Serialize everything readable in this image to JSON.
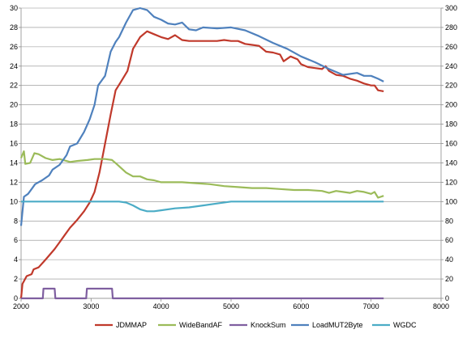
{
  "chart_data": {
    "type": "line",
    "title": "",
    "xlabel": "",
    "ylabel": "",
    "xlim": [
      2000,
      8000
    ],
    "x_ticks": [
      "2000",
      "3000",
      "4000",
      "5000",
      "6000",
      "7000",
      "8000"
    ],
    "y_left_lim": [
      0,
      30
    ],
    "y_left_ticks": [
      "0",
      "2",
      "4",
      "6",
      "8",
      "10",
      "12",
      "14",
      "16",
      "18",
      "20",
      "22",
      "24",
      "26",
      "28",
      "30"
    ],
    "y_right_lim": [
      0,
      300
    ],
    "y_right_ticks": [
      "0",
      "20",
      "40",
      "60",
      "80",
      "100",
      "120",
      "140",
      "160",
      "180",
      "200",
      "220",
      "240",
      "260",
      "280",
      "300"
    ],
    "grid": "horizontal",
    "legend_position": "bottom",
    "series": [
      {
        "name": "JDMMAP",
        "color": "#c0392b",
        "axis": "left",
        "points": [
          [
            2000,
            0
          ],
          [
            2020,
            1.5
          ],
          [
            2080,
            2.3
          ],
          [
            2150,
            2.5
          ],
          [
            2180,
            3.0
          ],
          [
            2250,
            3.2
          ],
          [
            2350,
            4.0
          ],
          [
            2420,
            4.6
          ],
          [
            2480,
            5.1
          ],
          [
            2550,
            5.8
          ],
          [
            2620,
            6.5
          ],
          [
            2700,
            7.3
          ],
          [
            2800,
            8.1
          ],
          [
            2900,
            9.0
          ],
          [
            2980,
            9.9
          ],
          [
            3050,
            11.0
          ],
          [
            3120,
            13.0
          ],
          [
            3200,
            16.0
          ],
          [
            3280,
            19.0
          ],
          [
            3350,
            21.5
          ],
          [
            3420,
            22.3
          ],
          [
            3520,
            23.5
          ],
          [
            3600,
            25.8
          ],
          [
            3700,
            27.0
          ],
          [
            3800,
            27.6
          ],
          [
            3900,
            27.3
          ],
          [
            4000,
            27.0
          ],
          [
            4100,
            26.8
          ],
          [
            4200,
            27.2
          ],
          [
            4300,
            26.7
          ],
          [
            4400,
            26.6
          ],
          [
            4600,
            26.6
          ],
          [
            4800,
            26.6
          ],
          [
            4900,
            26.7
          ],
          [
            5000,
            26.6
          ],
          [
            5100,
            26.6
          ],
          [
            5200,
            26.3
          ],
          [
            5300,
            26.2
          ],
          [
            5400,
            26.1
          ],
          [
            5500,
            25.5
          ],
          [
            5600,
            25.4
          ],
          [
            5700,
            25.2
          ],
          [
            5750,
            24.5
          ],
          [
            5850,
            25.0
          ],
          [
            5950,
            24.7
          ],
          [
            6000,
            24.2
          ],
          [
            6100,
            23.9
          ],
          [
            6200,
            23.8
          ],
          [
            6300,
            23.7
          ],
          [
            6350,
            24.0
          ],
          [
            6400,
            23.5
          ],
          [
            6500,
            23.1
          ],
          [
            6600,
            23.0
          ],
          [
            6700,
            22.7
          ],
          [
            6800,
            22.5
          ],
          [
            6900,
            22.2
          ],
          [
            7000,
            22.0
          ],
          [
            7050,
            22.0
          ],
          [
            7100,
            21.5
          ],
          [
            7180,
            21.4
          ]
        ]
      },
      {
        "name": "WideBandAF",
        "color": "#9bbb59",
        "axis": "left",
        "points": [
          [
            2000,
            14.5
          ],
          [
            2040,
            15.2
          ],
          [
            2060,
            13.9
          ],
          [
            2130,
            14.0
          ],
          [
            2190,
            15.0
          ],
          [
            2250,
            14.9
          ],
          [
            2350,
            14.5
          ],
          [
            2450,
            14.3
          ],
          [
            2550,
            14.4
          ],
          [
            2700,
            14.1
          ],
          [
            2800,
            14.2
          ],
          [
            2950,
            14.3
          ],
          [
            3050,
            14.4
          ],
          [
            3200,
            14.4
          ],
          [
            3300,
            14.3
          ],
          [
            3380,
            13.8
          ],
          [
            3500,
            13.0
          ],
          [
            3600,
            12.6
          ],
          [
            3700,
            12.6
          ],
          [
            3800,
            12.3
          ],
          [
            3900,
            12.2
          ],
          [
            4000,
            12.0
          ],
          [
            4100,
            12.0
          ],
          [
            4300,
            12.0
          ],
          [
            4500,
            11.9
          ],
          [
            4700,
            11.8
          ],
          [
            4900,
            11.6
          ],
          [
            5100,
            11.5
          ],
          [
            5300,
            11.4
          ],
          [
            5500,
            11.4
          ],
          [
            5700,
            11.3
          ],
          [
            5900,
            11.2
          ],
          [
            6100,
            11.2
          ],
          [
            6300,
            11.1
          ],
          [
            6400,
            10.9
          ],
          [
            6500,
            11.1
          ],
          [
            6600,
            11.0
          ],
          [
            6700,
            10.9
          ],
          [
            6800,
            11.1
          ],
          [
            6900,
            11.0
          ],
          [
            7000,
            10.8
          ],
          [
            7050,
            11.0
          ],
          [
            7100,
            10.4
          ],
          [
            7180,
            10.6
          ]
        ]
      },
      {
        "name": "KnockSum",
        "color": "#7f5fa0",
        "axis": "left",
        "points": [
          [
            2000,
            0
          ],
          [
            2310,
            0
          ],
          [
            2320,
            1
          ],
          [
            2480,
            1
          ],
          [
            2490,
            0
          ],
          [
            2930,
            0
          ],
          [
            2940,
            1
          ],
          [
            3300,
            1
          ],
          [
            3310,
            0
          ],
          [
            7180,
            0
          ]
        ]
      },
      {
        "name": "LoadMUT2Byte",
        "color": "#4f81bd",
        "axis": "right",
        "points": [
          [
            2000,
            75
          ],
          [
            2040,
            105
          ],
          [
            2100,
            108
          ],
          [
            2150,
            113
          ],
          [
            2200,
            118
          ],
          [
            2300,
            122
          ],
          [
            2400,
            127
          ],
          [
            2450,
            133
          ],
          [
            2550,
            138
          ],
          [
            2650,
            148
          ],
          [
            2700,
            157
          ],
          [
            2800,
            160
          ],
          [
            2900,
            172
          ],
          [
            2980,
            185
          ],
          [
            3050,
            200
          ],
          [
            3100,
            220
          ],
          [
            3200,
            230
          ],
          [
            3280,
            255
          ],
          [
            3350,
            265
          ],
          [
            3400,
            270
          ],
          [
            3500,
            285
          ],
          [
            3600,
            298
          ],
          [
            3700,
            300
          ],
          [
            3800,
            298
          ],
          [
            3900,
            291
          ],
          [
            4000,
            288
          ],
          [
            4100,
            284
          ],
          [
            4200,
            283
          ],
          [
            4300,
            285
          ],
          [
            4400,
            278
          ],
          [
            4500,
            277
          ],
          [
            4600,
            280
          ],
          [
            4800,
            279
          ],
          [
            5000,
            280
          ],
          [
            5200,
            277
          ],
          [
            5400,
            271
          ],
          [
            5600,
            264
          ],
          [
            5800,
            258
          ],
          [
            6000,
            250
          ],
          [
            6200,
            244
          ],
          [
            6400,
            237
          ],
          [
            6600,
            231
          ],
          [
            6800,
            233
          ],
          [
            6900,
            230
          ],
          [
            7000,
            230
          ],
          [
            7100,
            227
          ],
          [
            7180,
            224
          ]
        ]
      },
      {
        "name": "WGDC",
        "color": "#4bacc6",
        "axis": "right",
        "points": [
          [
            2000,
            100
          ],
          [
            3400,
            100
          ],
          [
            3500,
            99
          ],
          [
            3600,
            96
          ],
          [
            3700,
            92
          ],
          [
            3800,
            90
          ],
          [
            3900,
            90
          ],
          [
            4000,
            91
          ],
          [
            4200,
            93
          ],
          [
            4400,
            94
          ],
          [
            4600,
            96
          ],
          [
            4800,
            98
          ],
          [
            5000,
            100
          ],
          [
            7180,
            100
          ]
        ]
      }
    ]
  }
}
